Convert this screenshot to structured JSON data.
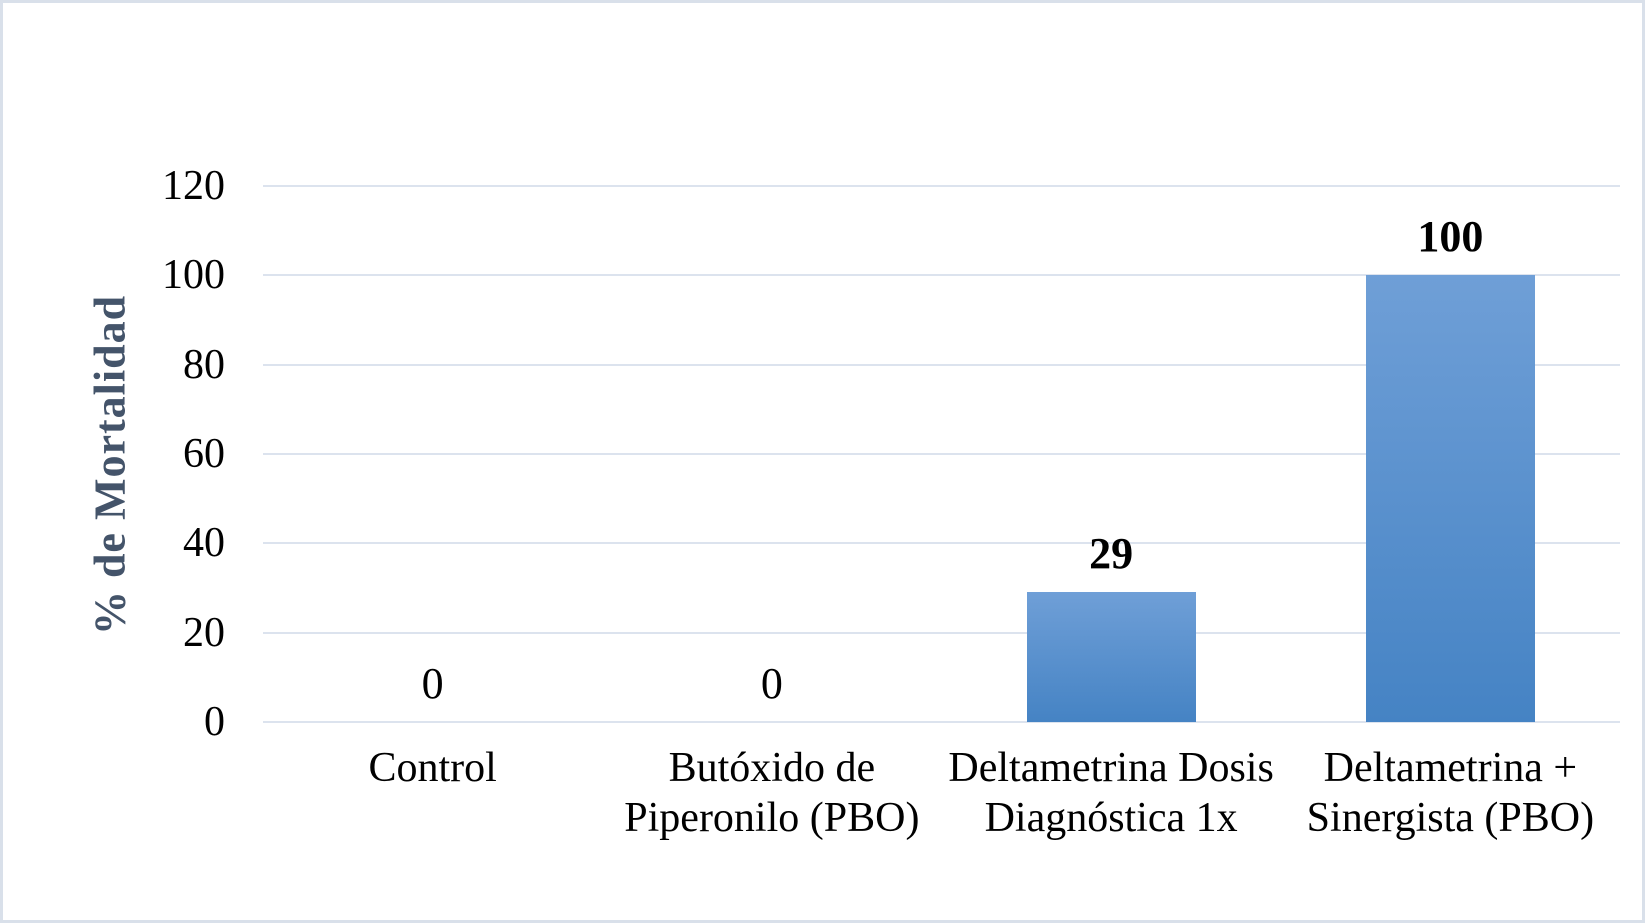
{
  "frame": {
    "background": "#ffffff",
    "border_color": "#d9e0ea"
  },
  "chart_data": {
    "type": "bar",
    "title": "",
    "xlabel": "",
    "ylabel": "% de Mortalidad",
    "categories": [
      "Control",
      "Butóxido de Piperonilo (PBO)",
      "Deltametrina Dosis Diagnóstica 1x",
      "Deltametrina + Sinergista (PBO)"
    ],
    "values": [
      0,
      0,
      29,
      100
    ],
    "data_labels": [
      "0",
      "0",
      "29",
      "100"
    ],
    "data_label_bold": [
      false,
      false,
      true,
      true
    ],
    "ylim": [
      0,
      120
    ],
    "yticks": [
      0,
      20,
      40,
      60,
      80,
      100,
      120
    ],
    "ytick_labels": [
      "0",
      "20",
      "40",
      "60",
      "80",
      "100",
      "120"
    ],
    "grid": "horizontal",
    "legend": "none",
    "colors": {
      "bar_top": "#6f9fd7",
      "bar_bottom": "#4583c4",
      "gridline": "#dce3ee",
      "axis_title_text": "#44546a",
      "tick_text": "#000000",
      "value_label_text": "#000000",
      "category_text": "#000000"
    }
  }
}
